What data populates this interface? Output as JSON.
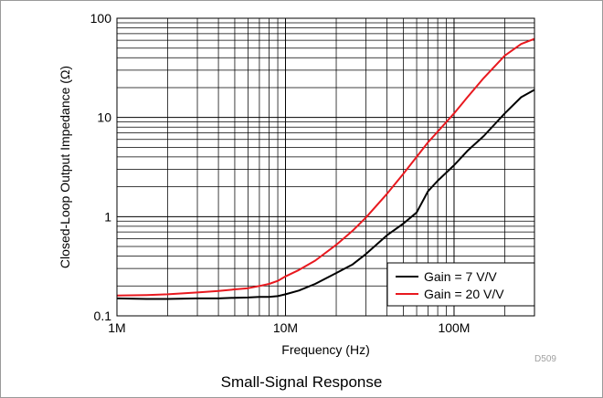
{
  "figure": {
    "caption": "Small-Signal Response",
    "figure_id": "D509"
  },
  "chart_data": {
    "type": "line",
    "title": "",
    "xlabel": "Frequency (Hz)",
    "ylabel": "Closed-Loop Output Impedance (Ω)",
    "xscale": "log",
    "yscale": "log",
    "xlim": [
      1000000,
      300000000
    ],
    "ylim": [
      0.1,
      100
    ],
    "x_ticks": [
      {
        "value": 1000000,
        "label": "1M"
      },
      {
        "value": 10000000,
        "label": "10M"
      },
      {
        "value": 100000000,
        "label": "100M"
      }
    ],
    "y_ticks": [
      {
        "value": 0.1,
        "label": "0.1"
      },
      {
        "value": 1,
        "label": "1"
      },
      {
        "value": 10,
        "label": "10"
      },
      {
        "value": 100,
        "label": "100"
      }
    ],
    "grid": true,
    "legend_position": "bottom-right",
    "series": [
      {
        "name": "Gain = 7 V/V",
        "color": "#000000",
        "x": [
          1000000,
          1500000,
          2000000,
          3000000,
          4000000,
          5000000,
          6000000,
          7000000,
          8000000,
          9000000,
          10000000,
          12000000,
          15000000,
          20000000,
          25000000,
          30000000,
          40000000,
          50000000,
          60000000,
          70000000,
          80000000,
          100000000,
          120000000,
          150000000,
          200000000,
          250000000,
          300000000
        ],
        "y": [
          0.15,
          0.148,
          0.148,
          0.15,
          0.15,
          0.152,
          0.153,
          0.155,
          0.155,
          0.158,
          0.165,
          0.18,
          0.21,
          0.27,
          0.33,
          0.42,
          0.65,
          0.85,
          1.1,
          1.8,
          2.3,
          3.3,
          4.6,
          6.5,
          11,
          16,
          19
        ]
      },
      {
        "name": "Gain = 20 V/V",
        "color": "#e8191f",
        "x": [
          1000000,
          1500000,
          2000000,
          3000000,
          4000000,
          5000000,
          6000000,
          7000000,
          8000000,
          9000000,
          10000000,
          12000000,
          15000000,
          20000000,
          25000000,
          30000000,
          40000000,
          50000000,
          60000000,
          70000000,
          80000000,
          100000000,
          120000000,
          150000000,
          200000000,
          250000000,
          300000000
        ],
        "y": [
          0.16,
          0.162,
          0.165,
          0.172,
          0.178,
          0.185,
          0.19,
          0.2,
          0.21,
          0.225,
          0.25,
          0.29,
          0.36,
          0.52,
          0.72,
          0.98,
          1.7,
          2.7,
          4.0,
          5.6,
          7.2,
          11,
          16,
          25,
          42,
          55,
          62
        ]
      }
    ]
  }
}
